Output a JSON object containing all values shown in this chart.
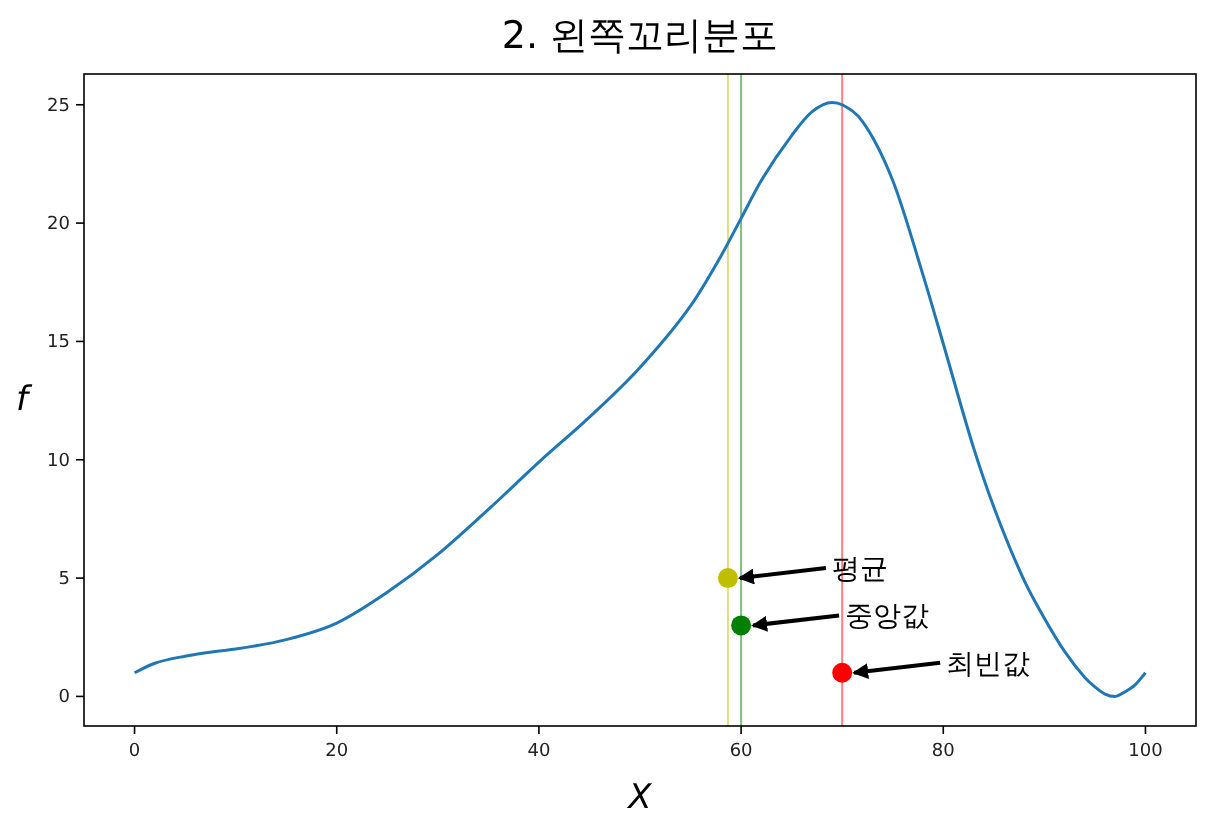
{
  "chart_data": {
    "type": "line",
    "title": "2. 왼쪽꼬리분포",
    "xlabel": "X",
    "ylabel": "f",
    "series": [
      {
        "color": "#1f77b4",
        "x": [
          0,
          2,
          5,
          8,
          10,
          15,
          20,
          25,
          30,
          35,
          40,
          45,
          50,
          55,
          58,
          60,
          62,
          65,
          67,
          69,
          70,
          72,
          75,
          78,
          80,
          83,
          85,
          88,
          90,
          92,
          94,
          95,
          96,
          97,
          98,
          99,
          100
        ],
        "values": [
          1.0,
          1.4,
          1.7,
          1.9,
          2.0,
          2.4,
          3.1,
          4.4,
          6.0,
          7.9,
          9.9,
          11.8,
          13.9,
          16.5,
          18.6,
          20.2,
          21.8,
          23.7,
          24.7,
          25.1,
          25.0,
          24.3,
          21.8,
          17.8,
          14.9,
          10.5,
          8.0,
          4.9,
          3.3,
          1.9,
          0.8,
          0.4,
          0.1,
          0.0,
          0.2,
          0.5,
          1.0
        ]
      },
      {
        "type": "scatter",
        "marker": "circle",
        "x": [
          58.7,
          60,
          70
        ],
        "values": [
          5,
          3,
          1
        ],
        "colors": [
          "#bfbf00",
          "#008000",
          "#ff0000"
        ]
      }
    ],
    "ref_lines": [
      {
        "axis": "x",
        "value": 58.7,
        "color": "#dfdf80"
      },
      {
        "axis": "x",
        "value": 60,
        "color": "#80bf80"
      },
      {
        "axis": "x",
        "value": 70,
        "color": "#ff8080"
      }
    ],
    "annotations": [
      {
        "text": "평균",
        "x": 58.7,
        "y": 5
      },
      {
        "text": "중앙값",
        "x": 60,
        "y": 3
      },
      {
        "text": "최빈값",
        "x": 70,
        "y": 1
      }
    ],
    "xlim": [
      -5,
      105
    ],
    "ylim": [
      -1.25,
      26.3
    ],
    "xticks": [
      0,
      20,
      40,
      60,
      80,
      100
    ],
    "yticks": [
      0,
      5,
      10,
      15,
      20,
      25
    ],
    "grid": false,
    "line_style": "solid"
  }
}
